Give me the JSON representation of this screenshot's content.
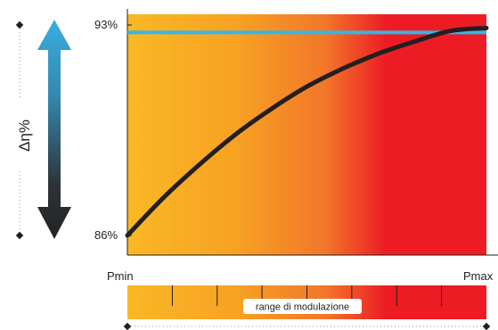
{
  "chart_data": {
    "type": "line",
    "title": "",
    "x_tick_labels": [
      "Pmin",
      "Pmax"
    ],
    "y_tick_labels": [
      "93%",
      "86%"
    ],
    "ylabel": "Δη%",
    "ylim": [
      86,
      93
    ],
    "xlim": [
      0,
      1
    ],
    "series": [
      {
        "x": [
          0,
          0.1,
          0.2,
          0.3,
          0.4,
          0.5,
          0.6,
          0.7,
          0.8,
          0.9,
          1.0
        ],
        "y": [
          86.0,
          87.25,
          88.35,
          89.35,
          90.2,
          90.95,
          91.55,
          92.05,
          92.45,
          92.8,
          92.9
        ]
      },
      {
        "x": [
          0,
          1
        ],
        "y": [
          92.75,
          92.75
        ]
      }
    ],
    "range_bar": {
      "label": "range di modulazione"
    },
    "colors": {
      "gradient": [
        "#F9B825",
        "#F7A223",
        "#F2772A",
        "#ED1C24",
        "#ED1C24"
      ],
      "efficiency_curve": "#231F20",
      "reference_line": "#36B6E6",
      "arrow_top": "#3AADDF",
      "arrow_bottom": "#232323"
    }
  }
}
